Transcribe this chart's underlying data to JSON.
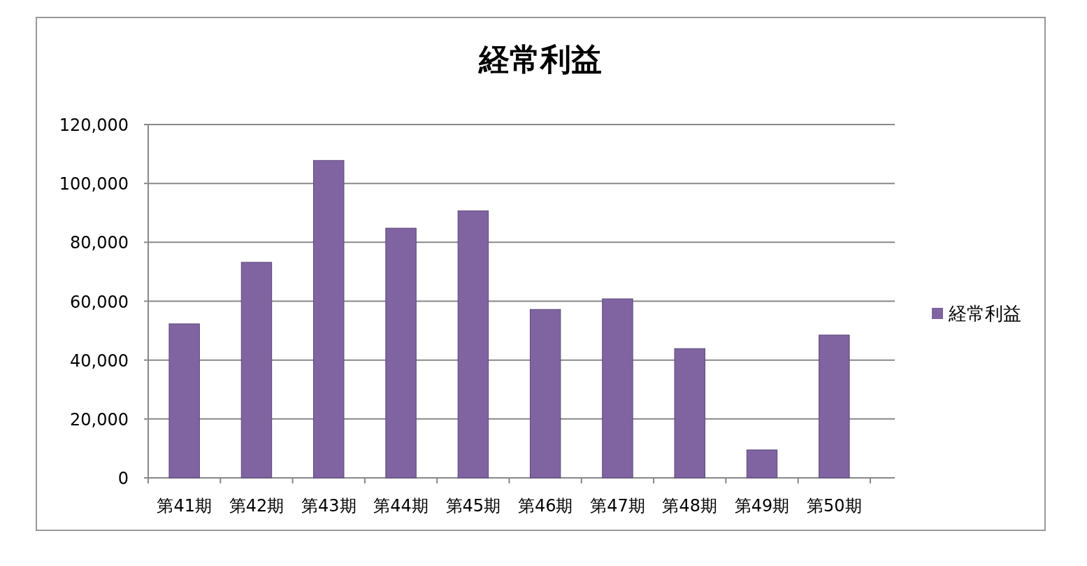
{
  "chart_data": {
    "type": "bar",
    "title": "経常利益",
    "categories": [
      "第41期",
      "第42期",
      "第43期",
      "第44期",
      "第45期",
      "第46期",
      "第47期",
      "第48期",
      "第49期",
      "第50期"
    ],
    "series": [
      {
        "name": "経常利益",
        "color": "#8064a2",
        "values": [
          52300,
          73200,
          107800,
          84800,
          90700,
          57200,
          60800,
          43900,
          9500,
          48500
        ]
      }
    ],
    "ylim": [
      0,
      120000
    ],
    "yticks": [
      0,
      {
        "value": 20000,
        "label": "20,000"
      },
      {
        "value": 40000,
        "label": "40,000"
      },
      {
        "value": 60000,
        "label": "60,000"
      },
      {
        "value": 80000,
        "label": "80,000"
      },
      {
        "value": 100000,
        "label": "100,000"
      },
      {
        "value": 120000,
        "label": "120,000"
      }
    ],
    "grid": "y",
    "legend": "right"
  }
}
